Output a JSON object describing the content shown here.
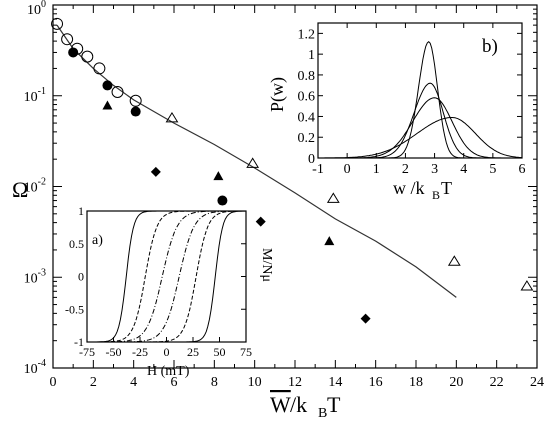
{
  "chart_data": [
    {
      "id": "main",
      "type": "scatter",
      "title": "",
      "xlabel": {
        "main": "W",
        "sub": "B",
        "pre": "/k",
        "post": "T"
      },
      "ylabel": "Ω",
      "xlim": [
        0,
        24
      ],
      "ylim": [
        0.0001,
        1
      ],
      "yscale": "log",
      "xticks": [
        "0",
        "2",
        "4",
        "6",
        "8",
        "10",
        "12",
        "14",
        "16",
        "18",
        "20",
        "22",
        "24"
      ],
      "yticks": [
        {
          "base": "10",
          "exp": "-4",
          "value": 0.0001
        },
        {
          "base": "10",
          "exp": "-3",
          "value": 0.001
        },
        {
          "base": "10",
          "exp": "-2",
          "value": 0.01
        },
        {
          "base": "10",
          "exp": "-1",
          "value": 0.1
        },
        {
          "base": "10",
          "exp": "0",
          "value": 1
        }
      ],
      "series": [
        {
          "marker": "line",
          "color": "#333333",
          "points": [
            [
              0.2,
              0.6
            ],
            [
              1,
              0.33
            ],
            [
              2,
              0.2
            ],
            [
              3,
              0.13
            ],
            [
              4,
              0.09
            ],
            [
              6,
              0.05
            ],
            [
              8,
              0.029
            ],
            [
              10,
              0.016
            ],
            [
              12,
              0.0085
            ],
            [
              14,
              0.0044
            ],
            [
              16,
              0.0025
            ],
            [
              18,
              0.0013
            ],
            [
              20,
              0.0006
            ]
          ]
        },
        {
          "marker": "open-circle",
          "color": "#000000",
          "points": [
            [
              0.2,
              0.62
            ],
            [
              0.7,
              0.42
            ],
            [
              1.2,
              0.33
            ],
            [
              1.7,
              0.27
            ],
            [
              2.3,
              0.2
            ],
            [
              3.2,
              0.11
            ],
            [
              4.1,
              0.088
            ]
          ]
        },
        {
          "marker": "filled-circle",
          "color": "#000000",
          "points": [
            [
              1.0,
              0.3
            ],
            [
              2.7,
              0.13
            ],
            [
              4.1,
              0.067
            ],
            [
              8.4,
              0.007
            ]
          ]
        },
        {
          "marker": "filled-triangle",
          "color": "#000000",
          "points": [
            [
              2.7,
              0.078
            ],
            [
              8.2,
              0.013
            ],
            [
              13.7,
              0.0025
            ]
          ]
        },
        {
          "marker": "open-triangle",
          "color": "#000000",
          "points": [
            [
              5.9,
              0.057
            ],
            [
              9.9,
              0.018
            ],
            [
              13.9,
              0.0074
            ],
            [
              19.9,
              0.0015
            ],
            [
              23.5,
              0.0008
            ]
          ]
        },
        {
          "marker": "filled-diamond",
          "color": "#000000",
          "points": [
            [
              5.1,
              0.0145
            ],
            [
              10.3,
              0.0041
            ],
            [
              15.5,
              0.00035
            ]
          ]
        }
      ]
    },
    {
      "id": "inset-a",
      "type": "line",
      "panel_label": "a)",
      "xlabel": "H (mT)",
      "ylabel": "M/Nμ",
      "xlim": [
        -75,
        75
      ],
      "ylim": [
        -1,
        1
      ],
      "xticks": [
        "-75",
        "-50",
        "-25",
        "0",
        "25",
        "50",
        "75"
      ],
      "yticks": [
        "-1",
        "-0.5",
        "0",
        "0.5",
        "1"
      ],
      "series": [
        {
          "style": "solid",
          "branch": "descending",
          "center": -38,
          "width": 7
        },
        {
          "style": "solid",
          "branch": "ascending",
          "center": 46,
          "width": 7
        },
        {
          "style": "dashed",
          "branch": "descending",
          "center": -20,
          "width": 11
        },
        {
          "style": "dashed",
          "branch": "ascending",
          "center": 28,
          "width": 11
        },
        {
          "style": "dash-dot",
          "branch": "descending",
          "center": -4,
          "width": 14
        },
        {
          "style": "dash-dot",
          "branch": "ascending",
          "center": 12,
          "width": 14
        }
      ]
    },
    {
      "id": "inset-b",
      "type": "line",
      "panel_label": "b)",
      "xlabel": {
        "main": "w /k",
        "sub": "B",
        "post": "T"
      },
      "ylabel": "P(w)",
      "xlim": [
        -1,
        6
      ],
      "ylim": [
        0,
        1.3
      ],
      "xticks": [
        "-1",
        "0",
        "1",
        "2",
        "3",
        "4",
        "5",
        "6"
      ],
      "yticks": [
        "0",
        "0.2",
        "0.4",
        "0.6",
        "0.8",
        "1",
        "1.2"
      ],
      "series": [
        {
          "peak_x": 2.8,
          "peak_y": 1.12,
          "sigma_left": 0.35,
          "sigma_right": 0.3
        },
        {
          "peak_x": 2.85,
          "peak_y": 0.72,
          "sigma_left": 0.55,
          "sigma_right": 0.45
        },
        {
          "peak_x": 3.0,
          "peak_y": 0.58,
          "sigma_left": 0.75,
          "sigma_right": 0.6
        },
        {
          "peak_x": 3.6,
          "peak_y": 0.39,
          "sigma_left": 1.2,
          "sigma_right": 0.8
        }
      ]
    }
  ]
}
